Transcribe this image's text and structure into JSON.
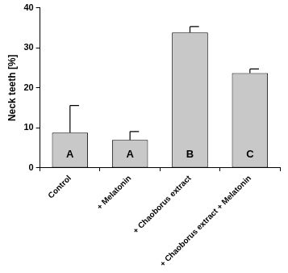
{
  "chart_data": {
    "type": "bar",
    "y_label": "Neck teeth [%]",
    "categories": [
      "Control",
      "+ Melatonin",
      "+ Chaoborus extract",
      "+ Chaoborus extract + Melatonin"
    ],
    "values": [
      8.8,
      7.0,
      33.8,
      23.7
    ],
    "errors": [
      6.8,
      2.1,
      1.5,
      1.0
    ],
    "group_labels": [
      "A",
      "A",
      "B",
      "C"
    ],
    "color": "#c8c8c8",
    "ylim": [
      0,
      40
    ],
    "yticks": [
      0,
      10,
      20,
      30,
      40
    ],
    "grid": false
  }
}
